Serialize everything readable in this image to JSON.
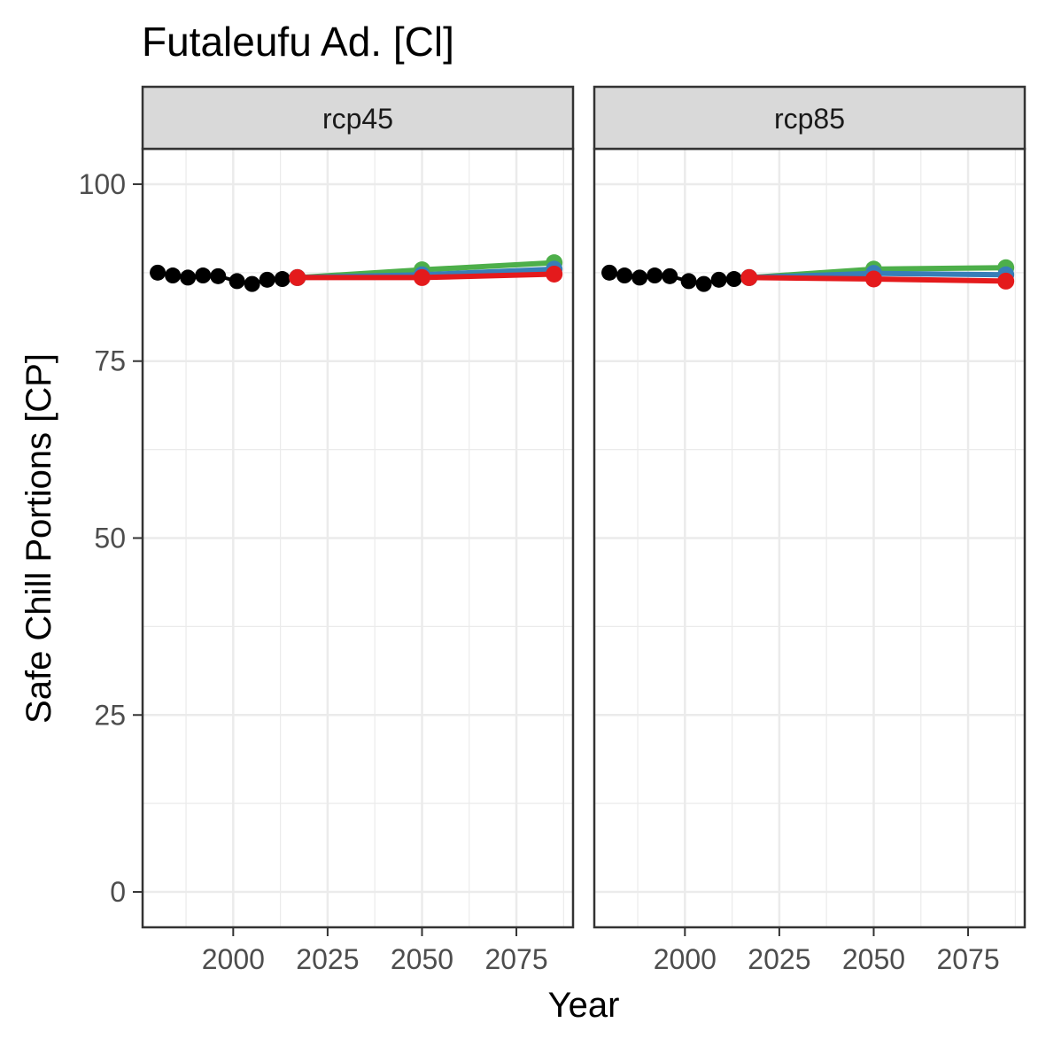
{
  "chart_data": {
    "type": "line",
    "title": "Futaleufu Ad. [Cl]",
    "xlabel": "Year",
    "ylabel": "Safe Chill Portions [CP]",
    "xlim": [
      1976,
      2090
    ],
    "ylim": [
      -5,
      105
    ],
    "x_ticks": [
      2000,
      2025,
      2050,
      2075
    ],
    "x_tick_labels": [
      "2000",
      "2025",
      "2050",
      "2075"
    ],
    "y_ticks": [
      0,
      25,
      50,
      75,
      100
    ],
    "y_tick_labels": [
      "0",
      "25",
      "50",
      "75",
      "100"
    ],
    "grid": true,
    "colors": {
      "historic": "#000000",
      "green": "#4daf4a",
      "blue": "#377eb8",
      "red": "#e41a1c",
      "strip_bg": "#d9d9d9",
      "grid": "#ebebeb",
      "border": "#333333"
    },
    "historic": {
      "x": [
        1980,
        1984,
        1988,
        1992,
        1996,
        2001,
        2005,
        2009,
        2013
      ],
      "y": [
        87.5,
        87.1,
        86.8,
        87.1,
        87.0,
        86.3,
        85.9,
        86.5,
        86.6
      ]
    },
    "panels": [
      {
        "label": "rcp45",
        "series": [
          {
            "name": "green",
            "color_key": "green",
            "x": [
              2017,
              2050,
              2085
            ],
            "y": [
              86.8,
              87.9,
              88.9
            ]
          },
          {
            "name": "blue",
            "color_key": "blue",
            "x": [
              2017,
              2050,
              2085
            ],
            "y": [
              86.8,
              87.2,
              88.0
            ]
          },
          {
            "name": "red",
            "color_key": "red",
            "x": [
              2017,
              2050,
              2085
            ],
            "y": [
              86.8,
              86.8,
              87.3
            ]
          }
        ]
      },
      {
        "label": "rcp85",
        "series": [
          {
            "name": "green",
            "color_key": "green",
            "x": [
              2017,
              2050,
              2085
            ],
            "y": [
              86.8,
              88.0,
              88.2
            ]
          },
          {
            "name": "blue",
            "color_key": "blue",
            "x": [
              2017,
              2050,
              2085
            ],
            "y": [
              86.8,
              87.4,
              87.2
            ]
          },
          {
            "name": "red",
            "color_key": "red",
            "x": [
              2017,
              2050,
              2085
            ],
            "y": [
              86.8,
              86.6,
              86.3
            ]
          }
        ]
      }
    ]
  }
}
